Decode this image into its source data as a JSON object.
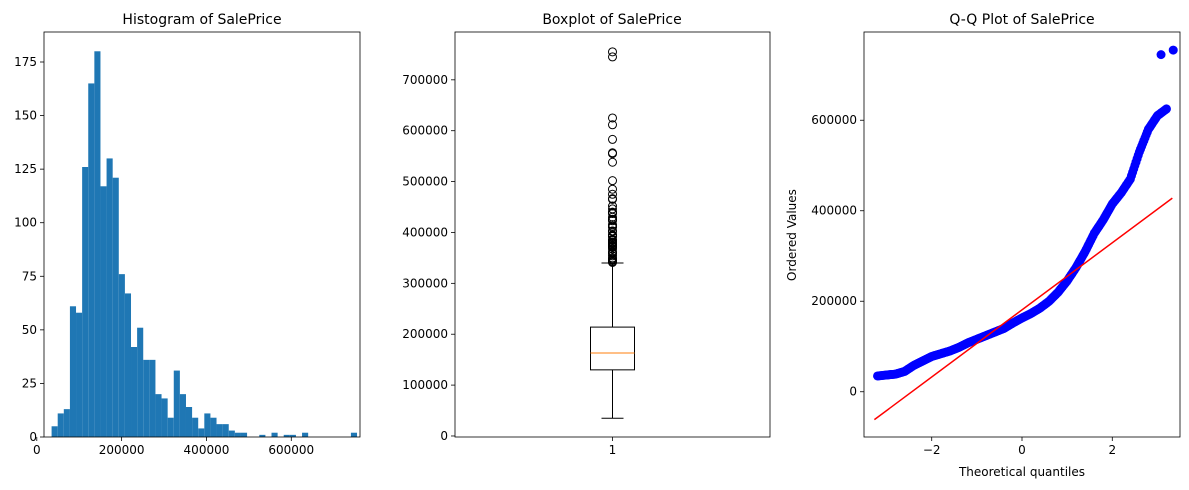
{
  "chart_data": [
    {
      "type": "histogram",
      "title": "Histogram of SalePrice",
      "xlabel": "",
      "ylabel": "",
      "xlim": [
        17000,
        762000
      ],
      "ylim": [
        0,
        189
      ],
      "bin_start": 34900,
      "bin_width": 14402,
      "counts": [
        5,
        11,
        13,
        61,
        58,
        126,
        165,
        180,
        117,
        130,
        121,
        76,
        67,
        42,
        51,
        36,
        36,
        20,
        18,
        9,
        31,
        20,
        14,
        9,
        4,
        11,
        9,
        6,
        6,
        3,
        2,
        2,
        0,
        0,
        1,
        0,
        2,
        0,
        1,
        1,
        0,
        2,
        0,
        0,
        0,
        0,
        0,
        0,
        0,
        2
      ],
      "xticks": [
        0,
        200000,
        400000,
        600000
      ],
      "xtick_labels": [
        "0",
        "200000",
        "400000",
        "600000"
      ],
      "yticks": [
        0,
        25,
        50,
        75,
        100,
        125,
        150,
        175
      ],
      "ytick_labels": [
        "0",
        "25",
        "50",
        "75",
        "100",
        "125",
        "150",
        "175"
      ],
      "color": "#1f77b4"
    },
    {
      "type": "boxplot",
      "title": "Boxplot of SalePrice",
      "xlabel": "",
      "ylabel": "",
      "ylim": [
        -2000,
        794000
      ],
      "categories": [
        "1"
      ],
      "whisker_low": 34900,
      "q1": 129975,
      "median": 163000,
      "q3": 214000,
      "whisker_high": 340000,
      "outliers": [
        341000,
        342643,
        345000,
        345474,
        348000,
        350000,
        354000,
        359100,
        360000,
        361919,
        367294,
        370878,
        372402,
        372500,
        374000,
        375000,
        377426,
        378500,
        380000,
        381000,
        383970,
        385000,
        386250,
        392000,
        392500,
        394432,
        394617,
        395000,
        395192,
        402000,
        402861,
        403000,
        410000,
        412500,
        415298,
        423000,
        424870,
        426000,
        430000,
        437154,
        438780,
        440000,
        446261,
        451950,
        465000,
        466500,
        475000,
        485000,
        501837,
        538000,
        555000,
        556581,
        582933,
        611657,
        625000,
        745000,
        755000
      ],
      "yticks": [
        0,
        100000,
        200000,
        300000,
        400000,
        500000,
        600000,
        700000
      ],
      "ytick_labels": [
        "0",
        "100000",
        "200000",
        "300000",
        "400000",
        "500000",
        "600000",
        "700000"
      ],
      "box_color": "#000000",
      "median_color": "#ff7f0e"
    },
    {
      "type": "scatter",
      "title": "Q-Q Plot of SalePrice",
      "xlabel": "Theoretical quantiles",
      "ylabel": "Ordered Values",
      "xlim": [
        -3.5,
        3.5
      ],
      "ylim": [
        -100000,
        795000
      ],
      "n": 1460,
      "fit_line": {
        "slope": 74160,
        "intercept": 180921,
        "color": "#ff0000"
      },
      "point_color": "#0000ff",
      "quantile_knots": {
        "x": [
          -3.2,
          -3.0,
          -2.8,
          -2.6,
          -2.4,
          -2.2,
          -2.0,
          -1.8,
          -1.6,
          -1.4,
          -1.2,
          -1.0,
          -0.8,
          -0.6,
          -0.4,
          -0.2,
          0.0,
          0.2,
          0.4,
          0.6,
          0.8,
          1.0,
          1.2,
          1.4,
          1.6,
          1.8,
          2.0,
          2.2,
          2.4,
          2.6,
          2.8,
          3.0,
          3.2
        ],
        "y": [
          34900,
          37000,
          39000,
          45000,
          58000,
          68000,
          78000,
          84000,
          90000,
          98000,
          108000,
          116000,
          124000,
          132000,
          140000,
          152000,
          163000,
          173000,
          185000,
          200000,
          220000,
          245000,
          275000,
          310000,
          350000,
          380000,
          415000,
          440000,
          470000,
          530000,
          580000,
          610000,
          625000
        ]
      },
      "extreme_points": [
        {
          "x": 3.08,
          "y": 745000
        },
        {
          "x": 3.35,
          "y": 755000
        }
      ],
      "xticks": [
        -2,
        0,
        2
      ],
      "xtick_labels": [
        "−2",
        "0",
        "2"
      ],
      "yticks": [
        0,
        200000,
        400000,
        600000
      ],
      "ytick_labels": [
        "0",
        "200000",
        "400000",
        "600000"
      ]
    }
  ]
}
